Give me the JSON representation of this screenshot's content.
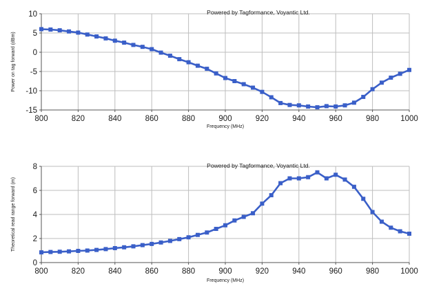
{
  "chart_data": [
    {
      "type": "line",
      "credit": "Powered by Tagformance, Voyantic Ltd.",
      "xlabel": "Frequency (MHz)",
      "ylabel": "Power on tag forward (dBm)",
      "xlim": [
        800,
        1000
      ],
      "ylim": [
        -15,
        10
      ],
      "xticks": [
        800,
        820,
        840,
        860,
        880,
        900,
        920,
        940,
        960,
        980,
        1000
      ],
      "yticks": [
        10,
        5,
        0,
        -5,
        -10,
        -15
      ],
      "grid": true,
      "color": "#3a5fc8",
      "x": [
        800,
        805,
        810,
        815,
        820,
        825,
        830,
        835,
        840,
        845,
        850,
        855,
        860,
        865,
        870,
        875,
        880,
        885,
        890,
        895,
        900,
        905,
        910,
        915,
        920,
        925,
        930,
        935,
        940,
        945,
        950,
        955,
        960,
        965,
        970,
        975,
        980,
        985,
        990,
        995,
        1000
      ],
      "y": [
        6.0,
        5.9,
        5.7,
        5.4,
        5.1,
        4.6,
        4.1,
        3.6,
        3.0,
        2.5,
        1.9,
        1.4,
        0.8,
        -0.1,
        -0.9,
        -1.8,
        -2.6,
        -3.5,
        -4.3,
        -5.5,
        -6.7,
        -7.5,
        -8.3,
        -9.2,
        -10.3,
        -11.7,
        -13.2,
        -13.7,
        -13.8,
        -14.1,
        -14.3,
        -14.0,
        -14.1,
        -13.8,
        -13.1,
        -11.6,
        -9.6,
        -7.9,
        -6.6,
        -5.6,
        -4.6
      ]
    },
    {
      "type": "line",
      "credit": "Powered by Tagformance, Voyantic Ltd.",
      "xlabel": "Frequency (MHz)",
      "ylabel": "Theoretical read range forward (m)",
      "xlim": [
        800,
        1000
      ],
      "ylim": [
        0,
        8
      ],
      "xticks": [
        800,
        820,
        840,
        860,
        880,
        900,
        920,
        940,
        960,
        980,
        1000
      ],
      "yticks": [
        8,
        6,
        4,
        2,
        0
      ],
      "grid": true,
      "color": "#3a5fc8",
      "x": [
        800,
        805,
        810,
        815,
        820,
        825,
        830,
        835,
        840,
        845,
        850,
        855,
        860,
        865,
        870,
        875,
        880,
        885,
        890,
        895,
        900,
        905,
        910,
        915,
        920,
        925,
        930,
        935,
        940,
        945,
        950,
        955,
        960,
        965,
        970,
        975,
        980,
        985,
        990,
        995,
        1000
      ],
      "y": [
        0.85,
        0.88,
        0.9,
        0.93,
        0.97,
        1.0,
        1.05,
        1.12,
        1.2,
        1.27,
        1.35,
        1.45,
        1.55,
        1.67,
        1.8,
        1.95,
        2.1,
        2.3,
        2.5,
        2.8,
        3.1,
        3.5,
        3.8,
        4.1,
        4.9,
        5.6,
        6.6,
        7.0,
        7.0,
        7.1,
        7.5,
        7.0,
        7.3,
        6.9,
        6.3,
        5.3,
        4.2,
        3.4,
        2.9,
        2.6,
        2.4
      ]
    }
  ]
}
